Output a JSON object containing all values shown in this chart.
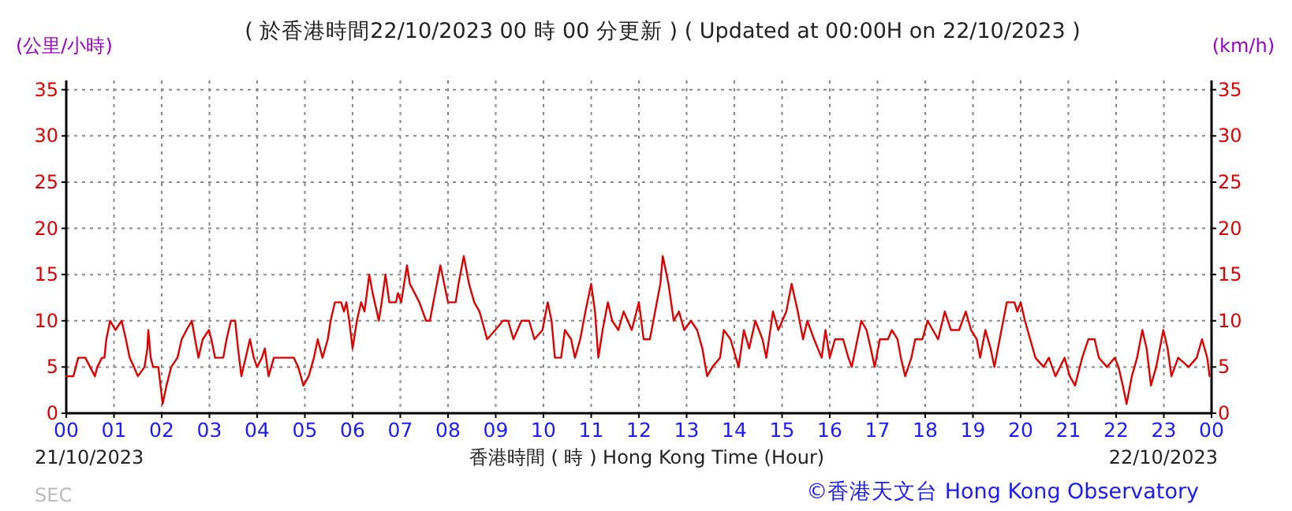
{
  "chart_data": {
    "type": "line",
    "title": "( 於香港時間22/10/2023 00 時 00 分更新 ) ( Updated at 00:00H on 22/10/2023 )",
    "xlabel": "香港時間 ( 時 )  Hong Kong Time (Hour)",
    "ylabel": "(公里/小時)",
    "y2label": "(km/h)",
    "annotations": [
      "21/10/2023",
      "22/10/2023",
      "SEC",
      "©香港天文台 Hong Kong Observatory"
    ],
    "xlim": [
      0,
      24
    ],
    "xticks": [
      {
        "value": 0,
        "label": "00"
      },
      {
        "value": 1,
        "label": "01"
      },
      {
        "value": 2,
        "label": "02"
      },
      {
        "value": 3,
        "label": "03"
      },
      {
        "value": 4,
        "label": "04"
      },
      {
        "value": 5,
        "label": "05"
      },
      {
        "value": 6,
        "label": "06"
      },
      {
        "value": 7,
        "label": "07"
      },
      {
        "value": 8,
        "label": "08"
      },
      {
        "value": 9,
        "label": "09"
      },
      {
        "value": 10,
        "label": "10"
      },
      {
        "value": 11,
        "label": "11"
      },
      {
        "value": 12,
        "label": "12"
      },
      {
        "value": 13,
        "label": "13"
      },
      {
        "value": 14,
        "label": "14"
      },
      {
        "value": 15,
        "label": "15"
      },
      {
        "value": 16,
        "label": "16"
      },
      {
        "value": 17,
        "label": "17"
      },
      {
        "value": 18,
        "label": "18"
      },
      {
        "value": 19,
        "label": "19"
      },
      {
        "value": 20,
        "label": "20"
      },
      {
        "value": 21,
        "label": "21"
      },
      {
        "value": 22,
        "label": "22"
      },
      {
        "value": 23,
        "label": "23"
      },
      {
        "value": 24,
        "label": "00"
      }
    ],
    "ylim": [
      0,
      36
    ],
    "yticks": [
      0,
      5,
      10,
      15,
      20,
      25,
      30,
      35
    ],
    "y2lim": [
      0,
      36
    ],
    "y2ticks": [
      0,
      5,
      10,
      15,
      20,
      25,
      30,
      35
    ],
    "grid": true,
    "marker": "none",
    "line_style": "solid",
    "series": [
      {
        "color": "#e00000",
        "x": [
          0,
          0.15,
          0.25,
          0.4,
          0.5,
          0.6,
          0.65,
          0.75,
          0.8,
          0.84,
          0.92,
          1.03,
          1.16,
          1.25,
          1.33,
          1.42,
          1.5,
          1.64,
          1.7,
          1.72,
          1.77,
          1.82,
          1.93,
          2.02,
          2.1,
          2.2,
          2.33,
          2.42,
          2.52,
          2.63,
          2.7,
          2.77,
          2.86,
          2.99,
          3.04,
          3.12,
          3.29,
          3.36,
          3.45,
          3.54,
          3.6,
          3.67,
          3.76,
          3.85,
          3.93,
          4.0,
          4.1,
          4.16,
          4.24,
          4.35,
          4.77,
          4.86,
          4.97,
          5.08,
          5.19,
          5.27,
          5.37,
          5.48,
          5.54,
          5.63,
          5.76,
          5.82,
          5.87,
          5.93,
          6.0,
          6.09,
          6.18,
          6.25,
          6.35,
          6.42,
          6.55,
          6.61,
          6.69,
          6.77,
          6.91,
          6.95,
          7.02,
          7.14,
          7.2,
          7.3,
          7.4,
          7.54,
          7.62,
          7.73,
          7.84,
          7.92,
          8.0,
          8.16,
          8.22,
          8.33,
          8.44,
          8.55,
          8.66,
          8.82,
          8.99,
          9.15,
          9.26,
          9.37,
          9.54,
          9.7,
          9.81,
          9.98,
          10.09,
          10.17,
          10.24,
          10.37,
          10.45,
          10.58,
          10.66,
          10.77,
          10.88,
          11.0,
          11.08,
          11.15,
          11.24,
          11.35,
          11.44,
          11.57,
          11.68,
          11.85,
          12.0,
          12.1,
          12.23,
          12.34,
          12.45,
          12.5,
          12.62,
          12.73,
          12.84,
          12.95,
          13.09,
          13.22,
          13.33,
          13.43,
          13.54,
          13.7,
          13.78,
          13.92,
          14.09,
          14.2,
          14.31,
          14.44,
          14.59,
          14.67,
          14.81,
          14.92,
          15.09,
          15.2,
          15.33,
          15.44,
          15.53,
          15.67,
          15.83,
          15.91,
          16.0,
          16.11,
          16.28,
          16.39,
          16.46,
          16.58,
          16.66,
          16.77,
          16.86,
          16.94,
          17.05,
          17.22,
          17.3,
          17.42,
          17.49,
          17.58,
          17.71,
          17.79,
          17.94,
          18.05,
          18.16,
          18.27,
          18.41,
          18.54,
          18.71,
          18.85,
          18.96,
          19.08,
          19.15,
          19.26,
          19.37,
          19.45,
          19.56,
          19.71,
          19.87,
          19.93,
          20.0,
          20.09,
          20.2,
          20.31,
          20.48,
          20.59,
          20.73,
          20.92,
          21.03,
          21.14,
          21.29,
          21.42,
          21.55,
          21.64,
          21.81,
          21.97,
          22.05,
          22.14,
          22.22,
          22.33,
          22.44,
          22.55,
          22.64,
          22.73,
          22.84,
          22.99,
          23.08,
          23.16,
          23.3,
          23.52,
          23.69,
          23.8,
          23.91,
          23.96
        ],
        "values": [
          4,
          4,
          6,
          6,
          5,
          4,
          5,
          6,
          6,
          8,
          10,
          9,
          10,
          8,
          6,
          5,
          4,
          5,
          7,
          9,
          6,
          5,
          5,
          1,
          3,
          5,
          6,
          8,
          9,
          10,
          8,
          6,
          8,
          9,
          8,
          6,
          6,
          8,
          10,
          10,
          7,
          4,
          6,
          8,
          6,
          5,
          6,
          7,
          4,
          6,
          6,
          5,
          3,
          4,
          6,
          8,
          6,
          8,
          10,
          12,
          12,
          11,
          12,
          10,
          7,
          10,
          12,
          11,
          15,
          13,
          10,
          12,
          15,
          12,
          12,
          13,
          12,
          16,
          14,
          13,
          12,
          10,
          10,
          13,
          16,
          14,
          12,
          12,
          14,
          17,
          14,
          12,
          11,
          8,
          9,
          10,
          10,
          8,
          10,
          10,
          8,
          9,
          12,
          10,
          6,
          6,
          9,
          8,
          6,
          8,
          11,
          14,
          11,
          6,
          9,
          12,
          10,
          9,
          11,
          9,
          12,
          8,
          8,
          11,
          14,
          17,
          14,
          10,
          11,
          9,
          10,
          9,
          7,
          4,
          5,
          6,
          9,
          8,
          5,
          9,
          7,
          10,
          8,
          6,
          11,
          9,
          11,
          14,
          11,
          8,
          10,
          8,
          6,
          9,
          6,
          8,
          8,
          6,
          5,
          8,
          10,
          9,
          7,
          5,
          8,
          8,
          9,
          8,
          6,
          4,
          6,
          8,
          8,
          10,
          9,
          8,
          11,
          9,
          9,
          11,
          9,
          8,
          6,
          9,
          7,
          5,
          8,
          12,
          12,
          11,
          12,
          10,
          8,
          6,
          5,
          6,
          4,
          6,
          4,
          3,
          6,
          8,
          8,
          6,
          5,
          6,
          5,
          3,
          1,
          4,
          6,
          9,
          7,
          3,
          5,
          9,
          7,
          4,
          6,
          5,
          6,
          8,
          6,
          4
        ]
      }
    ]
  }
}
